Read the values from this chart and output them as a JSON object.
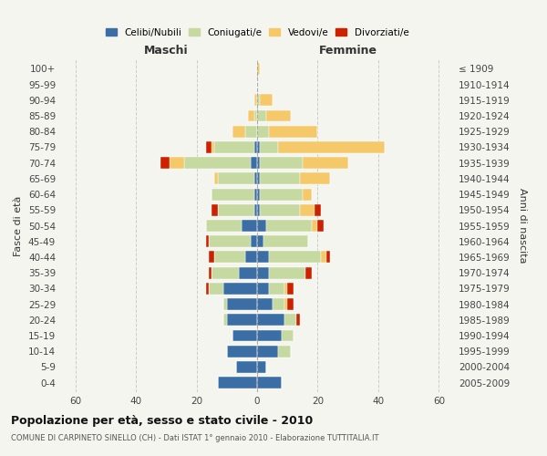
{
  "age_groups": [
    "100+",
    "95-99",
    "90-94",
    "85-89",
    "80-84",
    "75-79",
    "70-74",
    "65-69",
    "60-64",
    "55-59",
    "50-54",
    "45-49",
    "40-44",
    "35-39",
    "30-34",
    "25-29",
    "20-24",
    "15-19",
    "10-14",
    "5-9",
    "0-4"
  ],
  "birth_years": [
    "≤ 1909",
    "1910-1914",
    "1915-1919",
    "1920-1924",
    "1925-1929",
    "1930-1934",
    "1935-1939",
    "1940-1944",
    "1945-1949",
    "1950-1954",
    "1955-1959",
    "1960-1964",
    "1965-1969",
    "1970-1974",
    "1975-1979",
    "1980-1984",
    "1985-1989",
    "1990-1994",
    "1995-1999",
    "2000-2004",
    "2005-2009"
  ],
  "males": {
    "celibi": [
      0,
      0,
      0,
      0,
      0,
      1,
      2,
      1,
      1,
      1,
      5,
      2,
      4,
      6,
      11,
      10,
      10,
      8,
      10,
      7,
      13
    ],
    "coniugati": [
      0,
      0,
      0,
      1,
      4,
      13,
      22,
      12,
      14,
      12,
      12,
      14,
      10,
      9,
      5,
      1,
      1,
      0,
      0,
      0,
      0
    ],
    "vedovi": [
      0,
      0,
      1,
      2,
      4,
      1,
      5,
      1,
      0,
      0,
      0,
      0,
      0,
      0,
      0,
      0,
      0,
      0,
      0,
      0,
      0
    ],
    "divorziati": [
      0,
      0,
      0,
      0,
      0,
      2,
      3,
      0,
      0,
      2,
      0,
      1,
      2,
      1,
      1,
      0,
      0,
      0,
      0,
      0,
      0
    ]
  },
  "females": {
    "nubili": [
      0,
      0,
      0,
      0,
      0,
      1,
      1,
      1,
      1,
      1,
      3,
      2,
      4,
      4,
      4,
      5,
      9,
      8,
      7,
      3,
      8
    ],
    "coniugate": [
      0,
      0,
      1,
      3,
      4,
      6,
      14,
      13,
      14,
      13,
      15,
      15,
      17,
      12,
      5,
      4,
      4,
      4,
      4,
      0,
      0
    ],
    "vedove": [
      1,
      0,
      4,
      8,
      16,
      35,
      15,
      10,
      3,
      5,
      2,
      0,
      2,
      0,
      1,
      1,
      0,
      0,
      0,
      0,
      0
    ],
    "divorziate": [
      0,
      0,
      0,
      0,
      0,
      0,
      0,
      0,
      0,
      2,
      2,
      0,
      1,
      2,
      2,
      2,
      1,
      0,
      0,
      0,
      0
    ]
  },
  "color_celibi": "#3a6ea5",
  "color_coniugati": "#c5d9a0",
  "color_vedovi": "#f5c96a",
  "color_divorziati": "#cc2200",
  "title": "Popolazione per età, sesso e stato civile - 2010",
  "subtitle": "COMUNE DI CARPINETO SINELLO (CH) - Dati ISTAT 1° gennaio 2010 - Elaborazione TUTTITALIA.IT",
  "xlabel_left": "Maschi",
  "xlabel_right": "Femmine",
  "ylabel_left": "Fasce di età",
  "ylabel_right": "Anni di nascita",
  "xlim": 65,
  "background_color": "#f5f5f0",
  "legend_labels": [
    "Celibi/Nubili",
    "Coniugati/e",
    "Vedovi/e",
    "Divorziati/e"
  ]
}
